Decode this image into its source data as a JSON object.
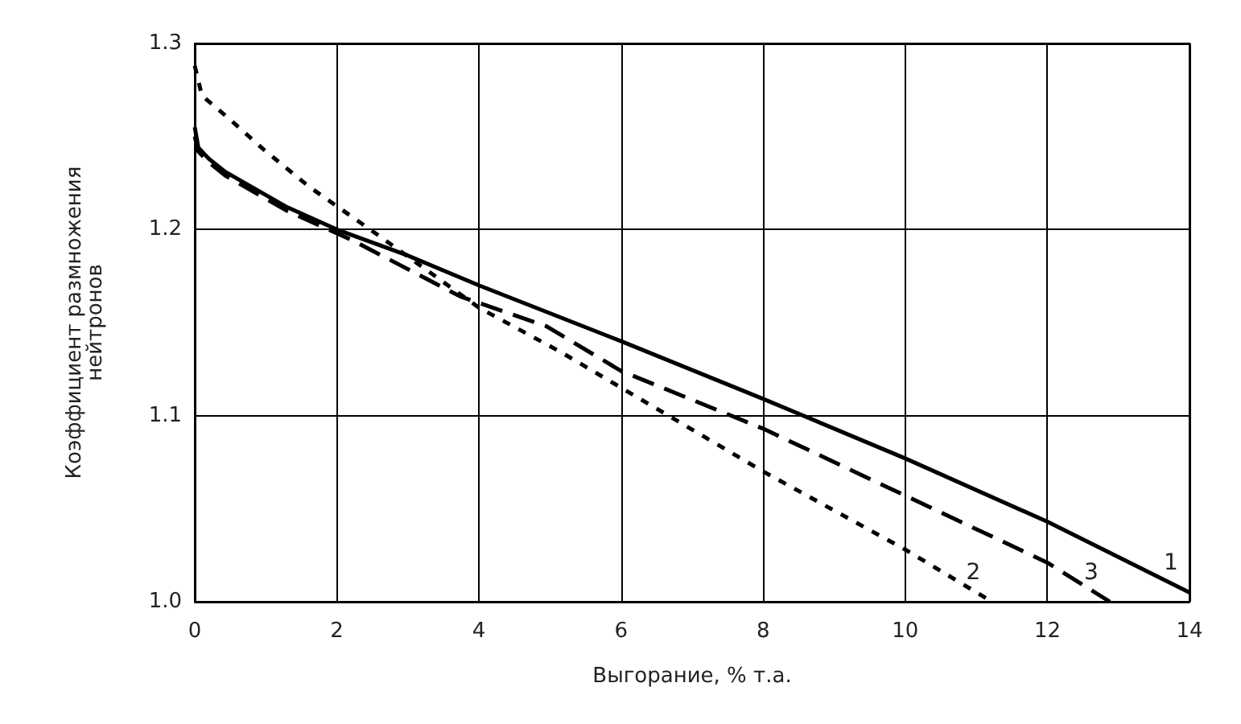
{
  "chart_data": {
    "type": "line",
    "xlabel": "Выгорание, % т.а.",
    "ylabel": "Коэффициент размножения\nнейтронов",
    "xlim": [
      0,
      14
    ],
    "xticks": [
      0,
      2,
      4,
      6,
      8,
      10,
      12,
      14
    ],
    "ylim": [
      1.0,
      1.3
    ],
    "yticks": [
      {
        "value": 1.0,
        "label": "1.0"
      },
      {
        "value": 1.1,
        "label": "1.1"
      },
      {
        "value": 1.2,
        "label": "1.2"
      },
      {
        "value": 1.3,
        "label": "1.3"
      }
    ],
    "grid": true,
    "legend": false,
    "marker": "none",
    "series": [
      {
        "name": "1",
        "color": "#000000",
        "line_style": "solid",
        "x": [
          0,
          0.05,
          0.2,
          0.43,
          1.3,
          2,
          3,
          4,
          6,
          8,
          10,
          12,
          14
        ],
        "values": [
          1.255,
          1.244,
          1.238,
          1.231,
          1.212,
          1.2,
          1.186,
          1.17,
          1.14,
          1.109,
          1.077,
          1.043,
          1.005
        ]
      },
      {
        "name": "2",
        "color": "#000000",
        "line_style": "dotted",
        "x": [
          0,
          0.1,
          0.47,
          0.97,
          1.61,
          2.58,
          4,
          5.16,
          6,
          8,
          10,
          11.22
        ],
        "values": [
          1.288,
          1.272,
          1.26,
          1.243,
          1.223,
          1.197,
          1.158,
          1.134,
          1.115,
          1.07,
          1.028,
          1.0
        ]
      },
      {
        "name": "3",
        "color": "#000000",
        "line_style": "dashed",
        "x": [
          0,
          0.05,
          0.2,
          0.43,
          1.3,
          2.23,
          3.74,
          4.95,
          6,
          8,
          10,
          12,
          12.88
        ],
        "values": [
          1.25,
          1.242,
          1.236,
          1.229,
          1.21,
          1.194,
          1.164,
          1.148,
          1.124,
          1.093,
          1.057,
          1.021,
          1.0
        ]
      }
    ]
  }
}
